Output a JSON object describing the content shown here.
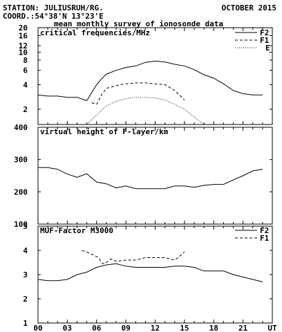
{
  "header": {
    "station": "STATION: JULIUSRUH/RG.",
    "coord": "COORD.:54°38'N 13°23'E",
    "month": "OCTOBER 2015",
    "title": "mean monthly survey of ionosonde data"
  },
  "chart_data": [
    {
      "type": "line",
      "title": "critical frequencies/MHz",
      "yscale": "log",
      "ylim": [
        1.3,
        20
      ],
      "yticks": [
        "2",
        "4",
        "6",
        "8",
        "10",
        "12",
        "16",
        "20"
      ],
      "yticks_values": [
        2,
        4,
        6,
        8,
        10,
        12,
        16,
        20
      ],
      "xlim": [
        0,
        24
      ],
      "legend_position": "top-right",
      "series": [
        {
          "name": "F2",
          "style": "solid",
          "x": [
            0,
            1,
            2,
            3,
            4,
            5,
            5.5,
            6,
            6.5,
            7,
            8,
            9,
            10,
            11,
            12,
            13,
            14,
            15,
            16,
            17,
            18,
            19,
            20,
            21,
            22,
            23
          ],
          "y": [
            3.0,
            2.9,
            2.9,
            2.8,
            2.8,
            2.55,
            3.2,
            4.0,
            4.7,
            5.4,
            6.0,
            6.5,
            6.8,
            7.5,
            7.8,
            7.6,
            7.1,
            6.8,
            6.1,
            5.3,
            4.8,
            4.1,
            3.4,
            3.1,
            3.0,
            3.0
          ]
        },
        {
          "name": "F1",
          "style": "dashed",
          "x": [
            5.5,
            6,
            6.5,
            7,
            8,
            9,
            10,
            11,
            12,
            13,
            14,
            15
          ],
          "y": [
            2.4,
            2.3,
            3.0,
            3.6,
            3.9,
            4.1,
            4.2,
            4.2,
            4.1,
            4.0,
            3.4,
            2.6
          ]
        },
        {
          "name": "E",
          "style": "dotted",
          "x": [
            5,
            6,
            7,
            8,
            9,
            10,
            11,
            12,
            13,
            14,
            15,
            16,
            17
          ],
          "y": [
            1.3,
            1.7,
            2.2,
            2.5,
            2.7,
            2.8,
            2.8,
            2.75,
            2.6,
            2.3,
            2.0,
            1.6,
            1.3
          ]
        }
      ]
    },
    {
      "type": "line",
      "title": "virtual height of F-layer/km",
      "ylim": [
        100,
        400
      ],
      "yticks": [
        "100",
        "200",
        "300",
        "400"
      ],
      "yticks_values": [
        100,
        200,
        300,
        400
      ],
      "xlim": [
        0,
        24
      ],
      "series": [
        {
          "style": "solid",
          "x": [
            0,
            1,
            2,
            3,
            4,
            5,
            6,
            7,
            8,
            9,
            10,
            11,
            12,
            13,
            14,
            15,
            16,
            17,
            18,
            19,
            20,
            21,
            22,
            23
          ],
          "y": [
            275,
            275,
            270,
            255,
            245,
            256,
            230,
            225,
            212,
            218,
            210,
            210,
            210,
            210,
            218,
            218,
            214,
            220,
            223,
            223,
            237,
            250,
            265,
            270
          ]
        }
      ]
    },
    {
      "type": "line",
      "title": "MUF-Factor M3000",
      "ylim": [
        1,
        5
      ],
      "yticks": [
        "1",
        "2",
        "3",
        "4",
        "5"
      ],
      "yticks_values": [
        1,
        2,
        3,
        4,
        5
      ],
      "xlim": [
        0,
        24
      ],
      "legend_position": "top-right",
      "series": [
        {
          "name": "F2",
          "style": "solid",
          "x": [
            0,
            1,
            2,
            3,
            4,
            5,
            6,
            7,
            8,
            9,
            10,
            11,
            12,
            13,
            14,
            15,
            16,
            17,
            18,
            19,
            20,
            21,
            22,
            23
          ],
          "y": [
            2.8,
            2.75,
            2.75,
            2.8,
            3.0,
            3.1,
            3.3,
            3.4,
            3.45,
            3.35,
            3.3,
            3.3,
            3.3,
            3.3,
            3.35,
            3.35,
            3.3,
            3.15,
            3.15,
            3.15,
            3.0,
            2.9,
            2.8,
            2.7
          ]
        },
        {
          "name": "F1",
          "style": "dashed",
          "x": [
            4.5,
            5.5,
            6.2,
            6.6,
            7,
            7.5,
            8,
            9,
            10,
            11,
            12,
            13,
            14,
            14.5,
            15
          ],
          "y": [
            4.0,
            3.85,
            3.7,
            3.45,
            3.5,
            3.65,
            3.55,
            3.6,
            3.6,
            3.7,
            3.7,
            3.7,
            3.6,
            3.75,
            3.95
          ]
        }
      ]
    }
  ],
  "xaxis": {
    "ticks": [
      "00",
      "03",
      "06",
      "09",
      "12",
      "15",
      "18",
      "21"
    ],
    "tick_values": [
      0,
      3,
      6,
      9,
      12,
      15,
      18,
      21
    ],
    "end_label": "UT"
  }
}
